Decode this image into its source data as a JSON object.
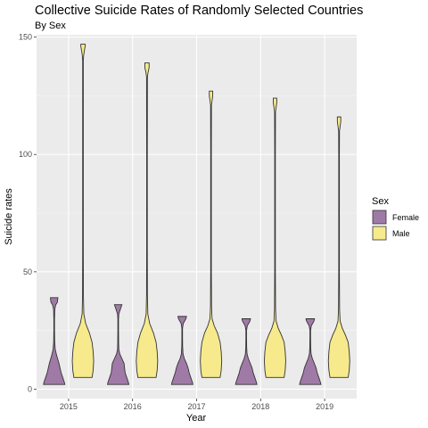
{
  "chart_data": {
    "type": "violin",
    "title": "Collective Suicide Rates of Randomly Selected Countries",
    "subtitle": "By Sex",
    "xlabel": "Year",
    "ylabel": "Suicide rates",
    "categories": [
      "2015",
      "2016",
      "2017",
      "2018",
      "2019"
    ],
    "ylim": [
      -4,
      151
    ],
    "yticks": [
      0,
      50,
      100,
      150
    ],
    "grid": true,
    "legend": {
      "title": "Sex",
      "position": "right"
    },
    "series": [
      {
        "name": "Female",
        "color": "#A07AA6",
        "ranges": [
          [
            2,
            39
          ],
          [
            2,
            36
          ],
          [
            2,
            31
          ],
          [
            2,
            30
          ],
          [
            2,
            30
          ]
        ],
        "density": [
          [
            [
              2,
              1.0
            ],
            [
              3,
              0.95
            ],
            [
              5,
              0.8
            ],
            [
              7,
              0.65
            ],
            [
              9,
              0.55
            ],
            [
              11,
              0.45
            ],
            [
              13,
              0.32
            ],
            [
              15,
              0.2
            ],
            [
              17,
              0.1
            ],
            [
              20,
              0.05
            ],
            [
              25,
              0.03
            ],
            [
              30,
              0.03
            ],
            [
              34,
              0.06
            ],
            [
              36,
              0.15
            ],
            [
              37,
              0.3
            ],
            [
              39,
              0.35
            ]
          ],
          [
            [
              2,
              1.0
            ],
            [
              3,
              0.95
            ],
            [
              5,
              0.8
            ],
            [
              7,
              0.65
            ],
            [
              9,
              0.6
            ],
            [
              11,
              0.55
            ],
            [
              13,
              0.35
            ],
            [
              15,
              0.15
            ],
            [
              17,
              0.06
            ],
            [
              20,
              0.04
            ],
            [
              25,
              0.03
            ],
            [
              30,
              0.03
            ],
            [
              32,
              0.06
            ],
            [
              34,
              0.2
            ],
            [
              36,
              0.35
            ]
          ],
          [
            [
              2,
              1.0
            ],
            [
              3,
              0.95
            ],
            [
              5,
              0.8
            ],
            [
              7,
              0.65
            ],
            [
              9,
              0.55
            ],
            [
              11,
              0.4
            ],
            [
              13,
              0.2
            ],
            [
              15,
              0.08
            ],
            [
              18,
              0.04
            ],
            [
              22,
              0.03
            ],
            [
              26,
              0.03
            ],
            [
              28,
              0.1
            ],
            [
              30,
              0.35
            ],
            [
              31,
              0.4
            ]
          ],
          [
            [
              2,
              1.0
            ],
            [
              3,
              0.95
            ],
            [
              5,
              0.8
            ],
            [
              7,
              0.65
            ],
            [
              9,
              0.55
            ],
            [
              11,
              0.38
            ],
            [
              13,
              0.2
            ],
            [
              15,
              0.08
            ],
            [
              18,
              0.04
            ],
            [
              22,
              0.03
            ],
            [
              25,
              0.03
            ],
            [
              27,
              0.1
            ],
            [
              29,
              0.35
            ],
            [
              30,
              0.4
            ]
          ],
          [
            [
              2,
              1.0
            ],
            [
              3,
              0.95
            ],
            [
              5,
              0.8
            ],
            [
              7,
              0.65
            ],
            [
              9,
              0.55
            ],
            [
              11,
              0.38
            ],
            [
              13,
              0.2
            ],
            [
              15,
              0.08
            ],
            [
              18,
              0.04
            ],
            [
              22,
              0.03
            ],
            [
              25,
              0.03
            ],
            [
              27,
              0.1
            ],
            [
              29,
              0.35
            ],
            [
              30,
              0.4
            ]
          ]
        ]
      },
      {
        "name": "Male",
        "color": "#F6EA8C",
        "ranges": [
          [
            5,
            147
          ],
          [
            5,
            139
          ],
          [
            5,
            127
          ],
          [
            5,
            124
          ],
          [
            5,
            116
          ]
        ],
        "density": [
          [
            [
              5,
              0.85
            ],
            [
              8,
              0.95
            ],
            [
              12,
              1.0
            ],
            [
              16,
              0.95
            ],
            [
              20,
              0.85
            ],
            [
              24,
              0.6
            ],
            [
              28,
              0.25
            ],
            [
              32,
              0.08
            ],
            [
              40,
              0.04
            ],
            [
              60,
              0.03
            ],
            [
              100,
              0.03
            ],
            [
              140,
              0.03
            ],
            [
              142,
              0.06
            ],
            [
              144,
              0.12
            ],
            [
              146,
              0.2
            ],
            [
              147,
              0.2
            ]
          ],
          [
            [
              5,
              0.85
            ],
            [
              8,
              0.95
            ],
            [
              12,
              1.0
            ],
            [
              16,
              0.95
            ],
            [
              20,
              0.85
            ],
            [
              24,
              0.6
            ],
            [
              28,
              0.25
            ],
            [
              32,
              0.08
            ],
            [
              40,
              0.04
            ],
            [
              60,
              0.03
            ],
            [
              100,
              0.03
            ],
            [
              133,
              0.04
            ],
            [
              135,
              0.1
            ],
            [
              137,
              0.2
            ],
            [
              139,
              0.2
            ]
          ],
          [
            [
              5,
              0.85
            ],
            [
              8,
              0.95
            ],
            [
              12,
              1.0
            ],
            [
              16,
              0.95
            ],
            [
              20,
              0.85
            ],
            [
              24,
              0.6
            ],
            [
              27,
              0.3
            ],
            [
              30,
              0.1
            ],
            [
              35,
              0.05
            ],
            [
              50,
              0.03
            ],
            [
              100,
              0.03
            ],
            [
              121,
              0.04
            ],
            [
              123,
              0.1
            ],
            [
              125,
              0.16
            ],
            [
              127,
              0.16
            ]
          ],
          [
            [
              5,
              0.85
            ],
            [
              8,
              0.95
            ],
            [
              12,
              1.0
            ],
            [
              16,
              0.95
            ],
            [
              20,
              0.85
            ],
            [
              23,
              0.6
            ],
            [
              26,
              0.3
            ],
            [
              29,
              0.1
            ],
            [
              34,
              0.05
            ],
            [
              50,
              0.03
            ],
            [
              100,
              0.03
            ],
            [
              118,
              0.04
            ],
            [
              120,
              0.1
            ],
            [
              122,
              0.16
            ],
            [
              124,
              0.16
            ]
          ],
          [
            [
              5,
              0.85
            ],
            [
              8,
              0.95
            ],
            [
              12,
              1.0
            ],
            [
              16,
              0.95
            ],
            [
              20,
              0.85
            ],
            [
              23,
              0.6
            ],
            [
              26,
              0.3
            ],
            [
              29,
              0.1
            ],
            [
              34,
              0.05
            ],
            [
              50,
              0.03
            ],
            [
              100,
              0.03
            ],
            [
              110,
              0.04
            ],
            [
              112,
              0.1
            ],
            [
              114,
              0.16
            ],
            [
              116,
              0.16
            ]
          ]
        ]
      }
    ]
  }
}
